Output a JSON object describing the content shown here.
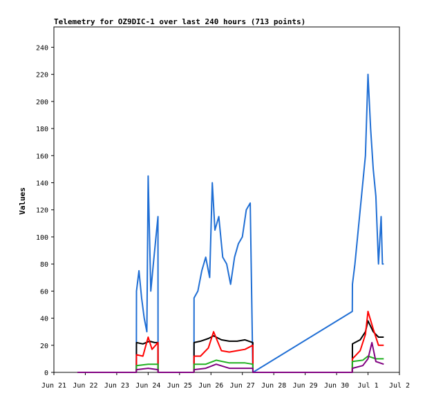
{
  "chart_data": {
    "type": "line",
    "title": "Telemetry for OZ9DIC-1 over last 240 hours (713 points)",
    "xlabel": "",
    "ylabel": "Values",
    "xlim": [
      "2024-06-21",
      "2024-07-02"
    ],
    "ylim": [
      0,
      255
    ],
    "x_ticks": [
      {
        "label": "Jun 21",
        "at": "2024-06-21"
      },
      {
        "label": "Jun 22",
        "at": "2024-06-22"
      },
      {
        "label": "Jun 23",
        "at": "2024-06-23"
      },
      {
        "label": "Jun 24",
        "at": "2024-06-24"
      },
      {
        "label": "Jun 25",
        "at": "2024-06-25"
      },
      {
        "label": "Jun 26",
        "at": "2024-06-26"
      },
      {
        "label": "Jun 27",
        "at": "2024-06-27"
      },
      {
        "label": "Jun 28",
        "at": "2024-06-28"
      },
      {
        "label": "Jun 29",
        "at": "2024-06-29"
      },
      {
        "label": "Jun 30",
        "at": "2024-06-30"
      },
      {
        "label": "Jul 1",
        "at": "2024-07-01"
      },
      {
        "label": "Jul 2",
        "at": "2024-07-02"
      }
    ],
    "y_ticks": [
      0,
      20,
      40,
      60,
      80,
      100,
      120,
      140,
      160,
      180,
      200,
      220,
      240
    ],
    "grid": false,
    "legend": "none",
    "series": [
      {
        "color": "#1f6ed4",
        "x": [
          "2024-06-21T18:00",
          "2024-06-23T15:00",
          "2024-06-23T15:05",
          "2024-06-23T17:00",
          "2024-06-23T19:00",
          "2024-06-23T21:00",
          "2024-06-23T23:00",
          "2024-06-24T00:00",
          "2024-06-24T02:00",
          "2024-06-24T04:00",
          "2024-06-24T06:00",
          "2024-06-24T07:30",
          "2024-06-24T07:35",
          "2024-06-25T11:00",
          "2024-06-25T11:05",
          "2024-06-25T14:00",
          "2024-06-25T17:00",
          "2024-06-25T20:00",
          "2024-06-25T23:00",
          "2024-06-26T01:00",
          "2024-06-26T03:00",
          "2024-06-26T06:00",
          "2024-06-26T09:00",
          "2024-06-26T12:00",
          "2024-06-26T15:00",
          "2024-06-26T18:00",
          "2024-06-26T21:00",
          "2024-06-27T00:00",
          "2024-06-27T03:00",
          "2024-06-27T06:00",
          "2024-06-27T08:00",
          "2024-06-27T08:05",
          "2024-06-30T12:00",
          "2024-06-30T12:05",
          "2024-06-30T14:00",
          "2024-06-30T16:00",
          "2024-06-30T19:00",
          "2024-06-30T22:00",
          "2024-07-01T00:00",
          "2024-07-01T02:00",
          "2024-07-01T04:00",
          "2024-07-01T06:00",
          "2024-07-01T08:00",
          "2024-07-01T10:00",
          "2024-07-01T11:00",
          "2024-07-01T12:00"
        ],
        "y": [
          0,
          0,
          60,
          75,
          55,
          40,
          30,
          145,
          60,
          80,
          100,
          115,
          0,
          0,
          55,
          60,
          75,
          85,
          70,
          140,
          105,
          115,
          85,
          80,
          65,
          85,
          95,
          100,
          120,
          125,
          0,
          0,
          45,
          65,
          80,
          100,
          130,
          160,
          220,
          180,
          150,
          130,
          80,
          115,
          80,
          80
        ]
      },
      {
        "color": "#000000",
        "x": [
          "2024-06-21T18:00",
          "2024-06-23T15:00",
          "2024-06-23T15:05",
          "2024-06-23T20:00",
          "2024-06-24T01:00",
          "2024-06-24T05:00",
          "2024-06-24T07:30",
          "2024-06-24T07:35",
          "2024-06-25T11:00",
          "2024-06-25T11:05",
          "2024-06-25T16:00",
          "2024-06-25T22:00",
          "2024-06-26T02:00",
          "2024-06-26T08:00",
          "2024-06-26T14:00",
          "2024-06-26T20:00",
          "2024-06-27T02:00",
          "2024-06-27T08:00",
          "2024-06-27T08:05",
          "2024-06-30T12:00",
          "2024-06-30T12:05",
          "2024-06-30T18:00",
          "2024-06-30T22:00",
          "2024-07-01T00:00",
          "2024-07-01T04:00",
          "2024-07-01T08:00",
          "2024-07-01T12:00"
        ],
        "y": [
          0,
          0,
          22,
          21,
          23,
          22,
          22,
          0,
          0,
          22,
          23,
          25,
          27,
          24,
          23,
          23,
          24,
          22,
          0,
          0,
          21,
          24,
          30,
          38,
          30,
          26,
          26
        ]
      },
      {
        "color": "#ff0000",
        "x": [
          "2024-06-21T18:00",
          "2024-06-23T15:00",
          "2024-06-23T15:05",
          "2024-06-23T20:00",
          "2024-06-24T00:00",
          "2024-06-24T03:00",
          "2024-06-24T07:30",
          "2024-06-24T07:35",
          "2024-06-25T11:00",
          "2024-06-25T11:05",
          "2024-06-25T16:00",
          "2024-06-25T22:00",
          "2024-06-26T02:00",
          "2024-06-26T08:00",
          "2024-06-26T14:00",
          "2024-06-26T20:00",
          "2024-06-27T02:00",
          "2024-06-27T08:00",
          "2024-06-27T08:05",
          "2024-06-30T12:00",
          "2024-06-30T12:05",
          "2024-06-30T18:00",
          "2024-06-30T22:00",
          "2024-07-01T00:00",
          "2024-07-01T04:00",
          "2024-07-01T08:00",
          "2024-07-01T12:00"
        ],
        "y": [
          0,
          0,
          13,
          12,
          26,
          17,
          22,
          0,
          0,
          12,
          12,
          18,
          30,
          16,
          15,
          16,
          17,
          20,
          0,
          0,
          10,
          16,
          28,
          45,
          32,
          20,
          20
        ]
      },
      {
        "color": "#20b020",
        "x": [
          "2024-06-21T18:00",
          "2024-06-23T15:00",
          "2024-06-23T15:05",
          "2024-06-24T00:00",
          "2024-06-24T07:30",
          "2024-06-24T07:35",
          "2024-06-25T11:00",
          "2024-06-25T11:05",
          "2024-06-25T20:00",
          "2024-06-26T04:00",
          "2024-06-26T14:00",
          "2024-06-27T02:00",
          "2024-06-27T08:00",
          "2024-06-27T08:05",
          "2024-06-30T12:00",
          "2024-06-30T12:05",
          "2024-06-30T20:00",
          "2024-07-01T00:00",
          "2024-07-01T06:00",
          "2024-07-01T12:00"
        ],
        "y": [
          0,
          0,
          5,
          6,
          6,
          0,
          0,
          6,
          6,
          9,
          7,
          7,
          6,
          0,
          0,
          8,
          9,
          12,
          10,
          10
        ]
      },
      {
        "color": "#800080",
        "x": [
          "2024-06-21T18:00",
          "2024-06-23T15:00",
          "2024-06-23T15:05",
          "2024-06-24T00:00",
          "2024-06-24T07:30",
          "2024-06-24T07:35",
          "2024-06-25T11:00",
          "2024-06-25T11:05",
          "2024-06-25T20:00",
          "2024-06-26T04:00",
          "2024-06-26T14:00",
          "2024-06-27T02:00",
          "2024-06-27T08:00",
          "2024-06-27T08:05",
          "2024-06-30T12:00",
          "2024-06-30T12:05",
          "2024-06-30T20:00",
          "2024-07-01T00:00",
          "2024-07-01T03:00",
          "2024-07-01T06:00",
          "2024-07-01T12:00"
        ],
        "y": [
          0,
          0,
          2,
          3,
          2,
          0,
          0,
          2,
          3,
          6,
          3,
          3,
          3,
          0,
          0,
          3,
          5,
          10,
          22,
          8,
          6
        ]
      }
    ]
  }
}
